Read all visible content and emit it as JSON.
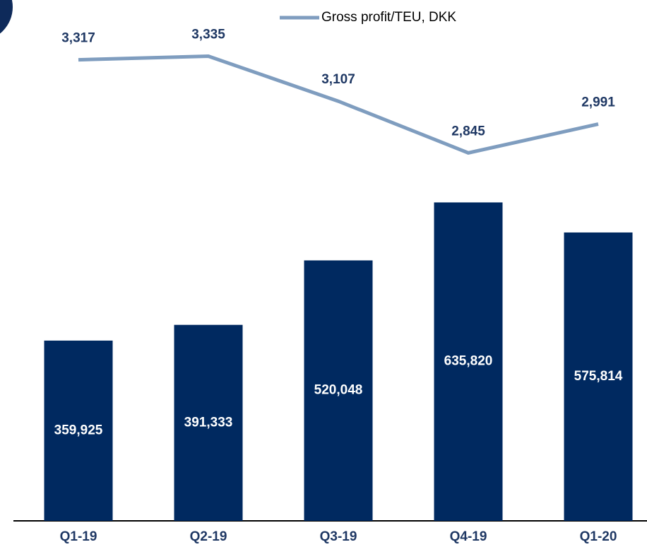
{
  "chart_data": {
    "type": "bar",
    "categories": [
      "Q1-19",
      "Q2-19",
      "Q3-19",
      "Q4-19",
      "Q1-20"
    ],
    "series": [
      {
        "type": "bar",
        "color": "#002960",
        "values": [
          359925,
          391333,
          520048,
          635820,
          575814
        ],
        "value_labels": [
          "359,925",
          "391,333",
          "520,048",
          "635,820",
          "575,814"
        ]
      },
      {
        "type": "line",
        "name": "Gross profit/TEU, DKK",
        "color": "#7f9dbf",
        "axis": "y2",
        "values": [
          3317,
          3335,
          3107,
          2845,
          2991
        ],
        "value_labels": [
          "3,317",
          "3,335",
          "3,107",
          "2,845",
          "2,991"
        ]
      }
    ],
    "ylim": [
      0,
      1040000
    ],
    "y2lim": [
      980,
      3620
    ],
    "legend": "top"
  }
}
